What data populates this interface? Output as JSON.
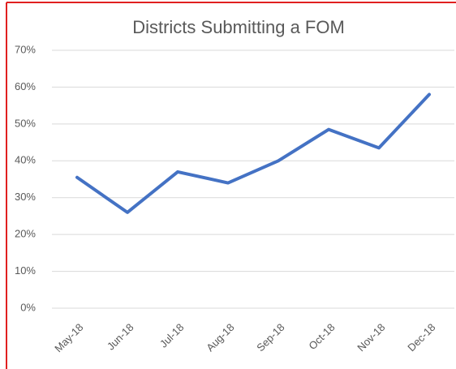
{
  "chart_data": {
    "type": "line",
    "title": "Districts Submitting a FOM",
    "categories": [
      "May-18",
      "Jun-18",
      "Jul-18",
      "Aug-18",
      "Sep-18",
      "Oct-18",
      "Nov-18",
      "Dec-18"
    ],
    "series": [
      {
        "name": "Districts Submitting a FOM",
        "color": "#4472c4",
        "values": [
          35.5,
          26,
          37,
          34,
          40,
          48.5,
          43.5,
          58
        ]
      }
    ],
    "ylim": [
      0,
      70
    ],
    "yticks": [
      {
        "value": 0,
        "label": "0%"
      },
      {
        "value": 10,
        "label": "10%"
      },
      {
        "value": 20,
        "label": "20%"
      },
      {
        "value": 30,
        "label": "30%"
      },
      {
        "value": 40,
        "label": "40%"
      },
      {
        "value": 50,
        "label": "50%"
      },
      {
        "value": 60,
        "label": "60%"
      },
      {
        "value": 70,
        "label": "70%"
      }
    ],
    "grid": true,
    "legend": false
  }
}
